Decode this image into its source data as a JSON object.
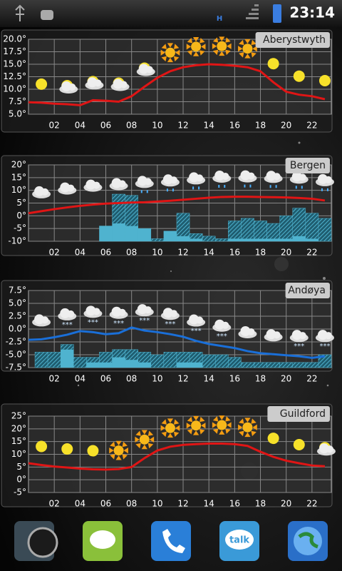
{
  "status_bar": {
    "network": "H",
    "time": "23:14"
  },
  "chart_data": [
    {
      "type": "line",
      "title": "Aberystwyth",
      "x": [
        0,
        1,
        2,
        3,
        4,
        5,
        6,
        7,
        8,
        9,
        10,
        11,
        12,
        13,
        14,
        15,
        16,
        17,
        18,
        19,
        20,
        21,
        22,
        23
      ],
      "series": [
        {
          "color": "#e01515",
          "values": [
            7.4,
            7.3,
            7.1,
            7.0,
            6.8,
            7.8,
            7.7,
            7.5,
            8.6,
            10.5,
            12.3,
            13.6,
            14.4,
            14.8,
            15.0,
            14.9,
            14.7,
            14.4,
            13.6,
            11.4,
            9.5,
            8.9,
            8.6,
            8.0
          ]
        }
      ],
      "xlim": [
        0,
        23.5
      ],
      "ylim": [
        5,
        20
      ],
      "xticks": [
        {
          "value": 2,
          "label": "02"
        },
        {
          "value": 4,
          "label": "04"
        },
        {
          "value": 6,
          "label": "06"
        },
        {
          "value": 8,
          "label": "08"
        },
        {
          "value": 10,
          "label": "10"
        },
        {
          "value": 12,
          "label": "12"
        },
        {
          "value": 14,
          "label": "14"
        },
        {
          "value": 16,
          "label": "16"
        },
        {
          "value": 18,
          "label": "18"
        },
        {
          "value": 20,
          "label": "20"
        },
        {
          "value": 22,
          "label": "22"
        }
      ],
      "yticks": [
        {
          "value": 20,
          "label": "20.0°"
        },
        {
          "value": 17.5,
          "label": "17.5°"
        },
        {
          "value": 15,
          "label": "15.0°"
        },
        {
          "value": 12.5,
          "label": "12.5°"
        },
        {
          "value": 10,
          "label": "10.0°"
        },
        {
          "value": 7.5,
          "label": "7.5°"
        },
        {
          "value": 5,
          "label": "5.0°"
        }
      ],
      "grid": true
    },
    {
      "type": "line",
      "title": "Bergen",
      "x": [
        0,
        1,
        2,
        3,
        4,
        5,
        6,
        7,
        8,
        9,
        10,
        11,
        12,
        13,
        14,
        15,
        16,
        17,
        18,
        19,
        20,
        21,
        22,
        23
      ],
      "series": [
        {
          "color": "#e01515",
          "values": [
            1.0,
            1.8,
            2.6,
            3.3,
            3.9,
            4.4,
            4.8,
            5.0,
            5.2,
            5.3,
            5.6,
            5.9,
            6.3,
            6.7,
            7.1,
            7.4,
            7.5,
            7.5,
            7.4,
            7.3,
            7.2,
            7.0,
            6.7,
            6.0
          ]
        }
      ],
      "precipitation": [
        {
          "color": "#4fb3cf",
          "values": [
            null,
            null,
            null,
            null,
            null,
            null,
            -4,
            8.5,
            8,
            -5,
            -9,
            -6,
            1,
            -7,
            -8,
            -9,
            -2,
            -1,
            -2,
            -3,
            0,
            3,
            1,
            -1
          ]
        },
        {
          "color": "#4fb3cf",
          "values": [
            null,
            null,
            null,
            null,
            null,
            null,
            -4,
            -3,
            -4,
            -5,
            -10,
            -6,
            -8,
            -9,
            -10,
            -10,
            -9,
            -9,
            -9,
            -9,
            -9,
            -8,
            -9,
            -10
          ]
        }
      ],
      "xlim": [
        0,
        23.5
      ],
      "ylim": [
        -10,
        20
      ],
      "xticks": [
        {
          "value": 2,
          "label": "02"
        },
        {
          "value": 4,
          "label": "04"
        },
        {
          "value": 6,
          "label": "06"
        },
        {
          "value": 8,
          "label": "08"
        },
        {
          "value": 10,
          "label": "10"
        },
        {
          "value": 12,
          "label": "12"
        },
        {
          "value": 14,
          "label": "14"
        },
        {
          "value": 16,
          "label": "16"
        },
        {
          "value": 18,
          "label": "18"
        },
        {
          "value": 20,
          "label": "20"
        },
        {
          "value": 22,
          "label": "22"
        }
      ],
      "yticks": [
        {
          "value": 20,
          "label": "20°"
        },
        {
          "value": 15,
          "label": "15°"
        },
        {
          "value": 10,
          "label": "10°"
        },
        {
          "value": 5,
          "label": "5°"
        },
        {
          "value": 0,
          "label": "0°"
        },
        {
          "value": -5,
          "label": "-5°"
        },
        {
          "value": -10,
          "label": "-10°"
        }
      ],
      "grid": true
    },
    {
      "type": "line",
      "title": "Andøya",
      "x": [
        0,
        1,
        2,
        3,
        4,
        5,
        6,
        7,
        8,
        9,
        10,
        11,
        12,
        13,
        14,
        15,
        16,
        17,
        18,
        19,
        20,
        21,
        22,
        23
      ],
      "series": [
        {
          "color": "#1a6fd8",
          "values": [
            -2.1,
            -2.0,
            -1.6,
            -1.1,
            -0.4,
            -0.6,
            -1.0,
            -0.8,
            0.3,
            -0.3,
            -0.6,
            -1.0,
            -1.5,
            -2.3,
            -2.9,
            -3.3,
            -3.7,
            -4.3,
            -4.7,
            -4.9,
            -5.1,
            -5.3,
            -5.6,
            -5.3
          ]
        }
      ],
      "precipitation": [
        {
          "color": "#4fb3cf",
          "values": [
            null,
            -4.5,
            -4.5,
            -3,
            -5.5,
            -5.5,
            -4.5,
            -4,
            -4,
            -4.5,
            -5,
            -4.5,
            -4.5,
            -4.5,
            -5,
            -5,
            -5.5,
            -6.5,
            -6.5,
            -6.5,
            -6.5,
            -6.5,
            -6.5,
            -5
          ]
        },
        {
          "color": "#4fb3cf",
          "values": [
            null,
            null,
            null,
            -4,
            null,
            -6.5,
            -6.5,
            -5.5,
            -6,
            -6.5,
            null,
            null,
            -6.5,
            -6.5,
            null,
            null,
            null,
            null,
            null,
            null,
            null,
            null,
            null,
            null
          ]
        }
      ],
      "xlim": [
        0,
        23.5
      ],
      "ylim": [
        -7.5,
        7.5
      ],
      "xticks": [
        {
          "value": 2,
          "label": "02"
        },
        {
          "value": 4,
          "label": "04"
        },
        {
          "value": 6,
          "label": "06"
        },
        {
          "value": 8,
          "label": "08"
        },
        {
          "value": 10,
          "label": "10"
        },
        {
          "value": 12,
          "label": "12"
        },
        {
          "value": 14,
          "label": "14"
        },
        {
          "value": 16,
          "label": "16"
        },
        {
          "value": 18,
          "label": "18"
        },
        {
          "value": 20,
          "label": "20"
        },
        {
          "value": 22,
          "label": "22"
        }
      ],
      "yticks": [
        {
          "value": 7.5,
          "label": "7.5°"
        },
        {
          "value": 5,
          "label": "5.0°"
        },
        {
          "value": 2.5,
          "label": "2.5°"
        },
        {
          "value": 0,
          "label": "0.0°"
        },
        {
          "value": -2.5,
          "label": "-2.5°"
        },
        {
          "value": -5,
          "label": "-5.0°"
        },
        {
          "value": -7.5,
          "label": "-7.5°"
        }
      ],
      "grid": true
    },
    {
      "type": "line",
      "title": "Guildford",
      "x": [
        0,
        1,
        2,
        3,
        4,
        5,
        6,
        7,
        8,
        9,
        10,
        11,
        12,
        13,
        14,
        15,
        16,
        17,
        18,
        19,
        20,
        21,
        22,
        23
      ],
      "series": [
        {
          "color": "#e01515",
          "values": [
            6.5,
            5.8,
            5.2,
            4.8,
            4.4,
            4.1,
            4.0,
            4.2,
            5.0,
            8.5,
            11.5,
            13.0,
            13.7,
            14.0,
            14.2,
            14.2,
            14.0,
            13.3,
            11.0,
            9.0,
            7.5,
            6.5,
            5.6,
            5.3
          ]
        }
      ],
      "xlim": [
        0,
        23.5
      ],
      "ylim": [
        -5,
        25
      ],
      "xticks": [
        {
          "value": 2,
          "label": "02"
        },
        {
          "value": 4,
          "label": "04"
        },
        {
          "value": 6,
          "label": "06"
        },
        {
          "value": 8,
          "label": "08"
        },
        {
          "value": 10,
          "label": "10"
        },
        {
          "value": 12,
          "label": "12"
        },
        {
          "value": 14,
          "label": "14"
        },
        {
          "value": 16,
          "label": "16"
        },
        {
          "value": 18,
          "label": "18"
        },
        {
          "value": 20,
          "label": "20"
        },
        {
          "value": 22,
          "label": "22"
        }
      ],
      "yticks": [
        {
          "value": 25,
          "label": "25°"
        },
        {
          "value": 20,
          "label": "20°"
        },
        {
          "value": 15,
          "label": "15°"
        },
        {
          "value": 10,
          "label": "10°"
        },
        {
          "value": 5,
          "label": "5°"
        },
        {
          "value": 0,
          "label": "0°"
        },
        {
          "value": -5,
          "label": "-5°"
        }
      ],
      "grid": true
    }
  ]
}
